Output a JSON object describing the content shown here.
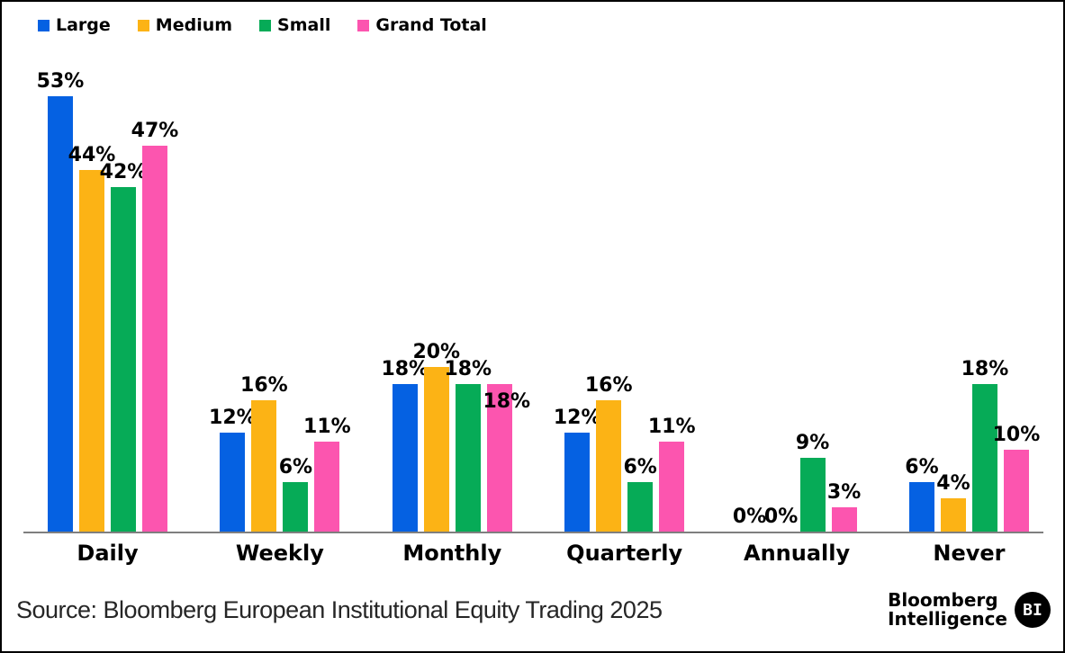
{
  "chart_data": {
    "type": "bar",
    "title": "",
    "categories": [
      "Daily",
      "Weekly",
      "Monthly",
      "Quarterly",
      "Annually",
      "Never"
    ],
    "series": [
      {
        "name": "Large",
        "color": "#0561E2",
        "values": [
          53,
          12,
          18,
          12,
          0,
          6
        ]
      },
      {
        "name": "Medium",
        "color": "#FCB315",
        "values": [
          44,
          16,
          20,
          16,
          0,
          4
        ]
      },
      {
        "name": "Small",
        "color": "#06AB57",
        "values": [
          42,
          6,
          18,
          6,
          9,
          18
        ]
      },
      {
        "name": "Grand Total",
        "color": "#FC55AF",
        "values": [
          47,
          11,
          18,
          11,
          3,
          10
        ]
      }
    ],
    "value_suffix": "%",
    "data_labels": true,
    "ylim": [
      0,
      58
    ],
    "grid": false,
    "legend_position": "top-left",
    "axis_line_color": "#7f7f7f",
    "label_offsets": {
      "Grand Total": {
        "Monthly": [
          8,
          36
        ]
      }
    }
  },
  "footer": {
    "source": "Source: Bloomberg European Institutional Equity Trading 2025",
    "logo_line1": "Bloomberg",
    "logo_line2": "Intelligence",
    "logo_badge": "BI"
  }
}
